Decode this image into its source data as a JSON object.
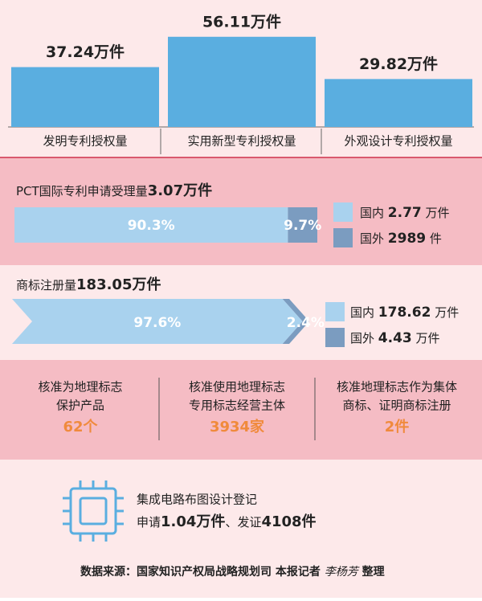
{
  "patents": {
    "categories": [
      "发明专利授权量",
      "实用新型专利授权量",
      "外观设计专利授权量"
    ],
    "values": [
      37.24,
      56.11,
      29.82
    ],
    "value_labels": [
      "37.24万件",
      "56.11万件",
      "29.82万件"
    ]
  },
  "pct": {
    "label": "PCT国际专利申请受理量",
    "total": "3.07万件",
    "shares": [
      90.3,
      9.7
    ],
    "share_labels": [
      "90.3%",
      "9.7%"
    ],
    "legend": [
      {
        "name": "国内",
        "value": "2.77",
        "unit": "万件"
      },
      {
        "name": "国外",
        "value": "2989",
        "unit": "件"
      }
    ]
  },
  "trademark": {
    "label": "商标注册量",
    "total": "183.05万件",
    "shares": [
      97.6,
      2.4
    ],
    "share_labels": [
      "97.6%",
      "2.4%"
    ],
    "legend": [
      {
        "name": "国内",
        "value": "178.62",
        "unit": "万件"
      },
      {
        "name": "国外",
        "value": "4.43",
        "unit": "万件"
      }
    ]
  },
  "geo": {
    "items": [
      {
        "lines": [
          "核准为地理标志",
          "保护产品"
        ],
        "value": "62个"
      },
      {
        "lines": [
          "核准使用地理标志",
          "专用标志经营主体"
        ],
        "value": "3934家"
      },
      {
        "lines": [
          "核准地理标志作为集体",
          "商标、证明商标注册"
        ],
        "value": "2件"
      }
    ]
  },
  "ic": {
    "title": "集成电路布图设计登记",
    "prefix": "申请",
    "value1": "1.04万件",
    "sep": "、发证",
    "value2": "4108件"
  },
  "footer": {
    "source": "数据来源：国家知识产权局战略规划司",
    "reporter": "本报记者",
    "name": "李杨芳",
    "action": "整理"
  }
}
